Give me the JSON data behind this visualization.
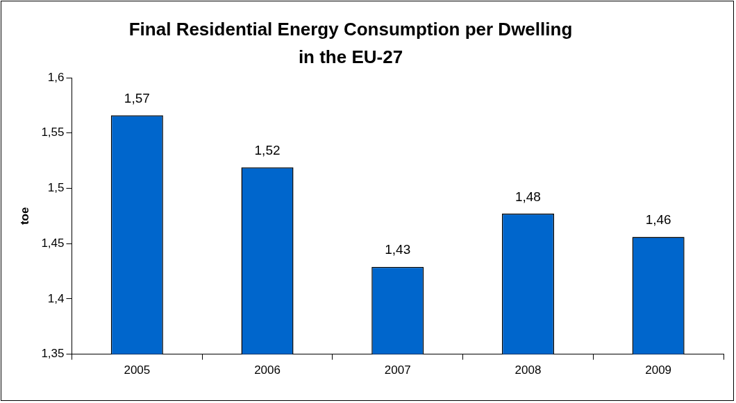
{
  "chart_data": {
    "type": "bar",
    "title": "Final Residential Energy Consumption per Dwelling in the EU-27",
    "ylabel": "toe",
    "categories": [
      "2005",
      "2006",
      "2007",
      "2008",
      "2009"
    ],
    "values": [
      1.566,
      1.519,
      1.429,
      1.477,
      1.456
    ],
    "value_labels": [
      "1,57",
      "1,52",
      "1,43",
      "1,48",
      "1,46"
    ],
    "color": "#0066cc",
    "ylim": [
      1.35,
      1.6
    ],
    "yticks": [
      {
        "value": 1.35,
        "label": "1,35"
      },
      {
        "value": 1.4,
        "label": "1,4"
      },
      {
        "value": 1.45,
        "label": "1,45"
      },
      {
        "value": 1.5,
        "label": "1,5"
      },
      {
        "value": 1.55,
        "label": "1,55"
      },
      {
        "value": 1.6,
        "label": "1,6"
      }
    ],
    "legend": false
  }
}
